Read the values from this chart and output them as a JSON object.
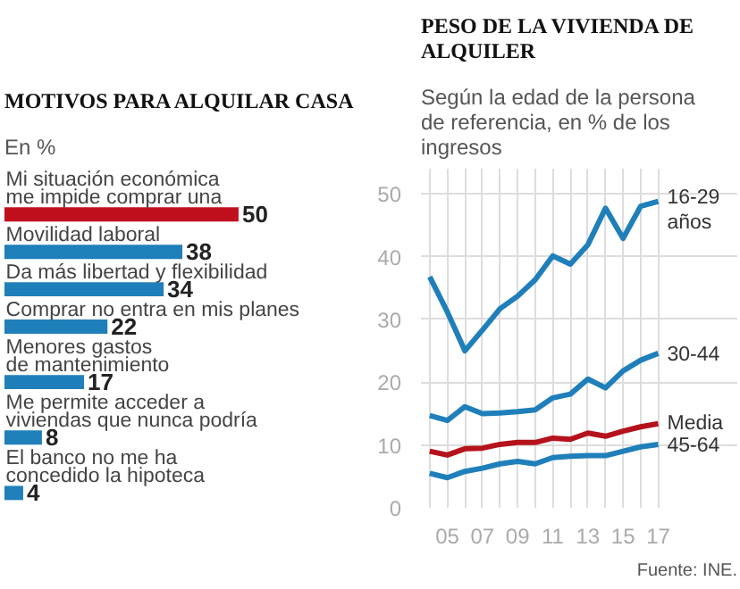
{
  "chart_data": [
    {
      "type": "bar",
      "orientation": "horizontal",
      "title": "MOTIVOS PARA ALQUILAR CASA",
      "subtitle": "En %",
      "categories": [
        "Mi situación económica\nme impide comprar una",
        "Movilidad laboral",
        "Da más libertad y flexibilidad",
        "Comprar no entra en mis planes",
        "Menores gastos\nde mantenimiento",
        "Me permite acceder a\nviviendas que nunca podría",
        "El banco no me ha\nconcedido la hipoteca"
      ],
      "values": [
        50,
        38,
        34,
        22,
        17,
        8,
        4
      ],
      "colors": [
        "#c0101e",
        "#1f7fba",
        "#1f7fba",
        "#1f7fba",
        "#1f7fba",
        "#1f7fba",
        "#1f7fba"
      ],
      "data_labels": true
    },
    {
      "type": "line",
      "title": "PESO DE LA VIVIENDA DE ALQUILER",
      "subtitle": "Según la edad de la persona de referencia, en % de los ingresos",
      "x": [
        2004,
        2005,
        2006,
        2007,
        2008,
        2009,
        2010,
        2011,
        2012,
        2013,
        2014,
        2015,
        2016,
        2017
      ],
      "series": [
        {
          "name": "16-29 años",
          "color": "#1f7fba",
          "values": [
            36.8,
            31.2,
            25,
            28.3,
            31.7,
            33.7,
            36.3,
            40.1,
            38.8,
            41.9,
            47.7,
            42.9,
            48,
            48.8
          ]
        },
        {
          "name": "30-44",
          "color": "#1f7fba",
          "values": [
            14.7,
            13.9,
            16.1,
            15,
            15.1,
            15.3,
            15.6,
            17.5,
            18.1,
            20.5,
            19.1,
            21.8,
            23.5,
            24.6
          ]
        },
        {
          "name": "Media",
          "color": "#b5121b",
          "values": [
            9.0,
            8.4,
            9.4,
            9.5,
            10.1,
            10.4,
            10.4,
            11.1,
            10.9,
            11.9,
            11.4,
            12.2,
            12.9,
            13.4
          ]
        },
        {
          "name": "45-64",
          "color": "#1f7fba",
          "values": [
            5.5,
            4.8,
            5.8,
            6.3,
            7.0,
            7.4,
            7.0,
            8.0,
            8.2,
            8.3,
            8.3,
            9.0,
            9.7,
            10.1
          ]
        }
      ],
      "xlim": [
        2003.5,
        2021.5
      ],
      "ylim": [
        0,
        54
      ],
      "yticks": [
        0,
        10,
        20,
        30,
        40,
        50
      ],
      "xticks": [
        {
          "value": 2004,
          "label": null
        },
        {
          "value": 2005,
          "label": "05"
        },
        {
          "value": 2006,
          "label": null
        },
        {
          "value": 2007,
          "label": "07"
        },
        {
          "value": 2008,
          "label": null
        },
        {
          "value": 2009,
          "label": "09"
        },
        {
          "value": 2010,
          "label": null
        },
        {
          "value": 2011,
          "label": "11"
        },
        {
          "value": 2012,
          "label": null
        },
        {
          "value": 2013,
          "label": "13"
        },
        {
          "value": 2014,
          "label": null
        },
        {
          "value": 2015,
          "label": "15"
        },
        {
          "value": 2016,
          "label": null
        },
        {
          "value": 2017,
          "label": "17"
        }
      ],
      "grid": true,
      "line_style": "solid",
      "annotations": [
        "Fuente: INE."
      ]
    }
  ]
}
